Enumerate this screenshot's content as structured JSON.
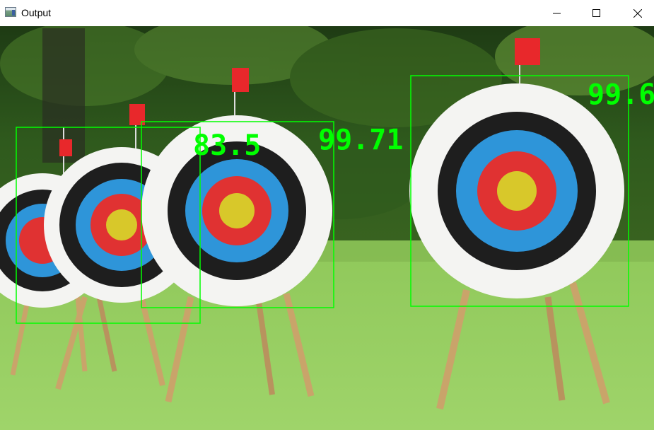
{
  "window": {
    "title": "Output",
    "icon": "app-window-icon",
    "controls": {
      "minimize": "minimize-icon",
      "maximize": "maximize-icon",
      "close": "close-icon"
    }
  },
  "image": {
    "content": "archery-targets-field",
    "box_color": "#00ff00",
    "detections": [
      {
        "label": "83.5"
      },
      {
        "label": "99.71"
      },
      {
        "label": "99.6"
      }
    ]
  }
}
